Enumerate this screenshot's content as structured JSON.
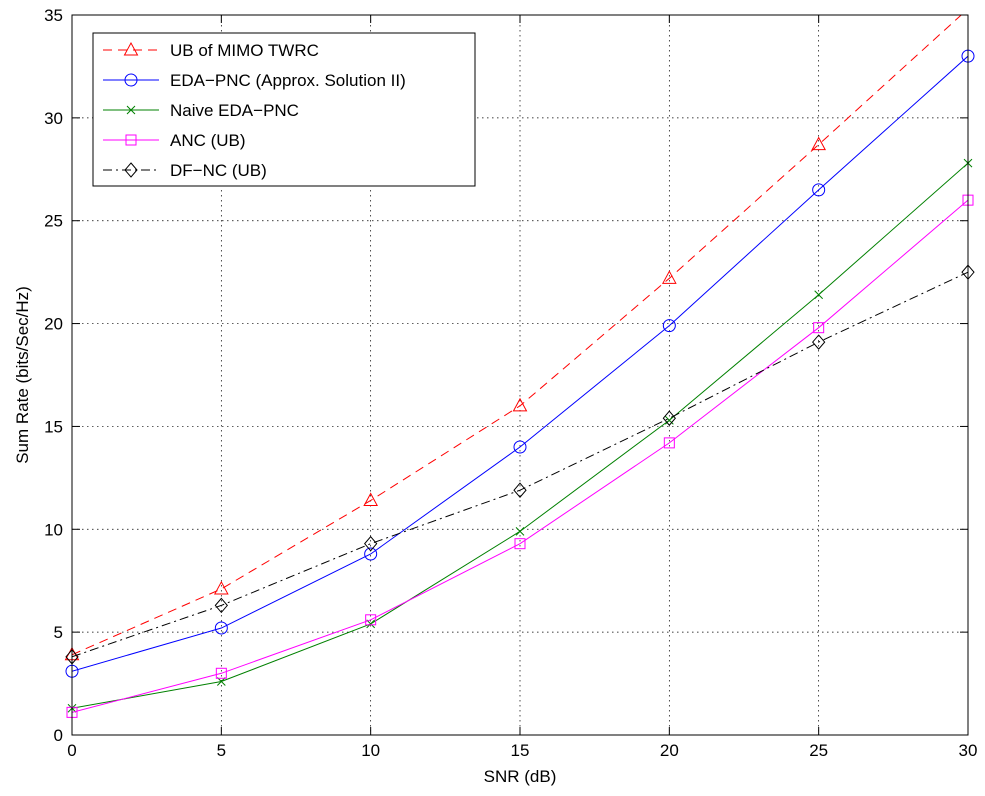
{
  "chart_data": {
    "type": "line",
    "xlabel": "SNR (dB)",
    "ylabel": "Sum Rate (bits/Sec/Hz)",
    "xlim": [
      0,
      30
    ],
    "ylim": [
      0,
      35
    ],
    "xticks": [
      0,
      5,
      10,
      15,
      20,
      25,
      30
    ],
    "yticks": [
      0,
      5,
      10,
      15,
      20,
      25,
      30,
      35
    ],
    "grid": true,
    "legend_position": "top-left",
    "x": [
      0,
      5,
      10,
      15,
      20,
      25,
      30
    ],
    "series": [
      {
        "name": "UB of MIMO TWRC",
        "color": "#ff0000",
        "dash": "dashed",
        "marker": "triangle",
        "values": [
          3.9,
          7.1,
          11.4,
          16.0,
          22.2,
          28.7,
          35.3
        ]
      },
      {
        "name": "EDA−PNC (Approx. Solution II)",
        "color": "#0000ff",
        "dash": "solid",
        "marker": "circle",
        "values": [
          3.1,
          5.2,
          8.8,
          14.0,
          19.9,
          26.5,
          33.0
        ]
      },
      {
        "name": "Naive EDA−PNC",
        "color": "#008000",
        "dash": "solid",
        "marker": "x",
        "values": [
          1.3,
          2.6,
          5.4,
          9.9,
          15.3,
          21.4,
          27.8
        ]
      },
      {
        "name": "ANC (UB)",
        "color": "#ff00ff",
        "dash": "solid",
        "marker": "square",
        "values": [
          1.1,
          3.0,
          5.6,
          9.3,
          14.2,
          19.8,
          26.0
        ]
      },
      {
        "name": "DF−NC (UB)",
        "color": "#000000",
        "dash": "dashdot",
        "marker": "diamond",
        "values": [
          3.8,
          6.3,
          9.3,
          11.9,
          15.4,
          19.1,
          22.5
        ]
      }
    ]
  }
}
